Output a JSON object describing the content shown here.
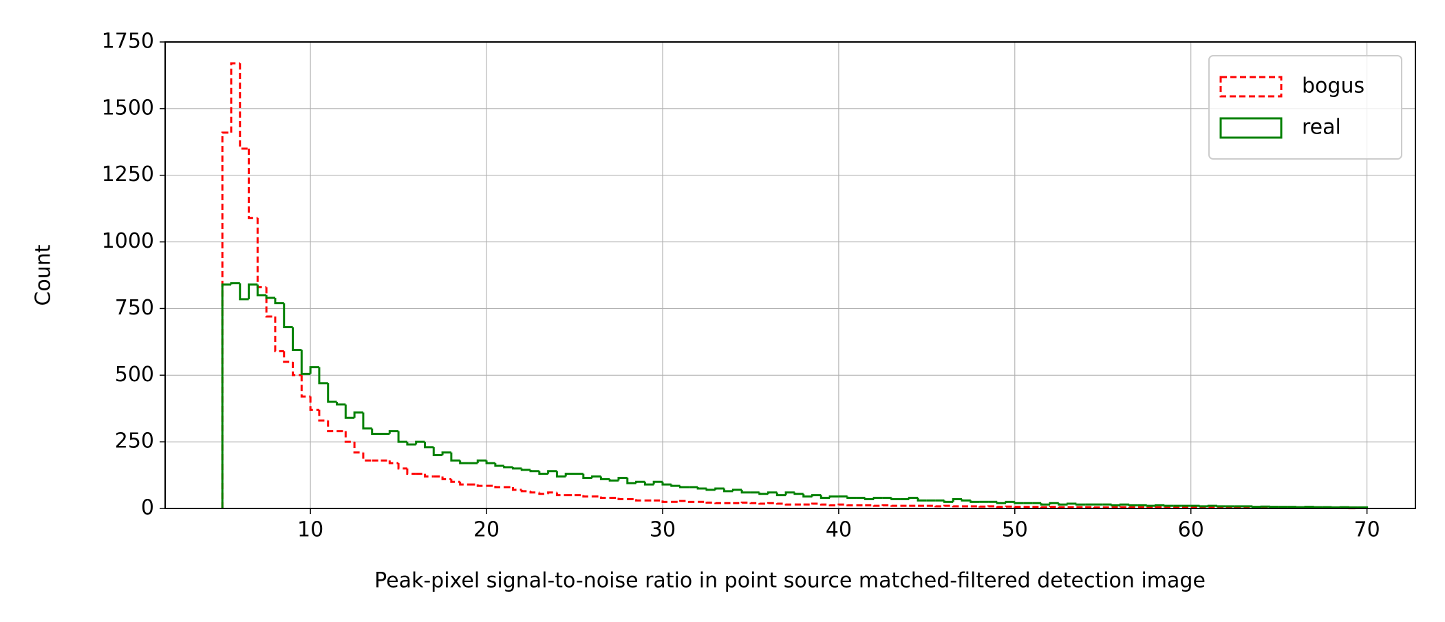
{
  "chart_data": {
    "type": "histogram",
    "xlabel": "Peak-pixel signal-to-noise ratio in point source matched-filtered detection image",
    "ylabel": "Count",
    "bins": [
      5,
      5.5,
      6,
      6.5,
      7,
      7.5,
      8,
      8.5,
      9,
      9.5,
      10,
      10.5,
      11,
      11.5,
      12,
      12.5,
      13,
      13.5,
      14,
      14.5,
      15,
      15.5,
      16,
      16.5,
      17,
      17.5,
      18,
      18.5,
      19,
      19.5,
      20,
      20.5,
      21,
      21.5,
      22,
      22.5,
      23,
      23.5,
      24,
      24.5,
      25,
      25.5,
      26,
      26.5,
      27,
      27.5,
      28,
      28.5,
      29,
      29.5,
      30,
      30.5,
      31,
      31.5,
      32,
      32.5,
      33,
      33.5,
      34,
      34.5,
      35,
      35.5,
      36,
      36.5,
      37,
      37.5,
      38,
      38.5,
      39,
      39.5,
      40,
      40.5,
      41,
      41.5,
      42,
      42.5,
      43,
      43.5,
      44,
      44.5,
      45,
      45.5,
      46,
      46.5,
      47,
      47.5,
      48,
      48.5,
      49,
      49.5,
      50,
      50.5,
      51,
      51.5,
      52,
      52.5,
      53,
      53.5,
      54,
      54.5,
      55,
      55.5,
      56,
      56.5,
      57,
      57.5,
      58,
      58.5,
      59,
      59.5,
      60,
      60.5,
      61,
      61.5,
      62,
      62.5,
      63,
      63.5,
      64,
      64.5,
      65,
      65.5,
      66,
      66.5,
      67,
      67.5,
      68,
      68.5,
      69,
      69.5,
      70
    ],
    "series": [
      {
        "name": "bogus",
        "color": "#ff0000",
        "linestyle": "dashed",
        "values": [
          1410,
          1670,
          1350,
          1090,
          830,
          720,
          590,
          550,
          500,
          420,
          370,
          330,
          290,
          290,
          250,
          210,
          180,
          180,
          180,
          170,
          150,
          130,
          130,
          120,
          120,
          110,
          100,
          90,
          90,
          85,
          85,
          80,
          80,
          70,
          65,
          60,
          55,
          60,
          50,
          50,
          50,
          45,
          45,
          40,
          40,
          35,
          35,
          30,
          30,
          30,
          25,
          25,
          28,
          25,
          25,
          22,
          20,
          20,
          20,
          22,
          20,
          18,
          20,
          18,
          15,
          15,
          15,
          18,
          15,
          12,
          15,
          12,
          12,
          12,
          10,
          12,
          10,
          10,
          10,
          10,
          10,
          8,
          10,
          8,
          8,
          8,
          7,
          8,
          6,
          7,
          6,
          6,
          6,
          5,
          6,
          5,
          5,
          5,
          5,
          4,
          4,
          4,
          5,
          4,
          4,
          3,
          4,
          3,
          3,
          3,
          3,
          3,
          3,
          3,
          2,
          3,
          2,
          2,
          2,
          2,
          2,
          2,
          2,
          2,
          2,
          2,
          2,
          2,
          1,
          2
        ]
      },
      {
        "name": "real",
        "color": "#008000",
        "linestyle": "solid",
        "values": [
          840,
          845,
          785,
          840,
          800,
          790,
          770,
          680,
          595,
          505,
          530,
          470,
          400,
          390,
          340,
          360,
          300,
          280,
          280,
          290,
          250,
          240,
          250,
          230,
          200,
          210,
          180,
          170,
          170,
          180,
          170,
          160,
          155,
          150,
          145,
          140,
          130,
          140,
          120,
          130,
          130,
          115,
          120,
          110,
          105,
          115,
          95,
          100,
          90,
          100,
          90,
          85,
          80,
          80,
          75,
          70,
          75,
          65,
          70,
          60,
          60,
          55,
          60,
          50,
          60,
          55,
          45,
          50,
          40,
          45,
          45,
          40,
          40,
          35,
          40,
          40,
          35,
          35,
          40,
          30,
          30,
          30,
          25,
          35,
          30,
          25,
          25,
          25,
          20,
          25,
          20,
          20,
          20,
          15,
          20,
          15,
          18,
          15,
          15,
          15,
          15,
          12,
          15,
          12,
          12,
          10,
          12,
          10,
          10,
          10,
          10,
          8,
          10,
          8,
          8,
          8,
          8,
          6,
          7,
          6,
          6,
          6,
          5,
          6,
          5,
          5,
          4,
          5,
          4,
          4
        ]
      }
    ],
    "xlim": [
      1.75,
      72.75
    ],
    "xticks": [
      10,
      20,
      30,
      40,
      50,
      60,
      70
    ],
    "ylim": [
      0,
      1750
    ],
    "yticks": [
      0,
      250,
      500,
      750,
      1000,
      1250,
      1500,
      1750
    ],
    "grid": true,
    "legend": "upper right"
  }
}
